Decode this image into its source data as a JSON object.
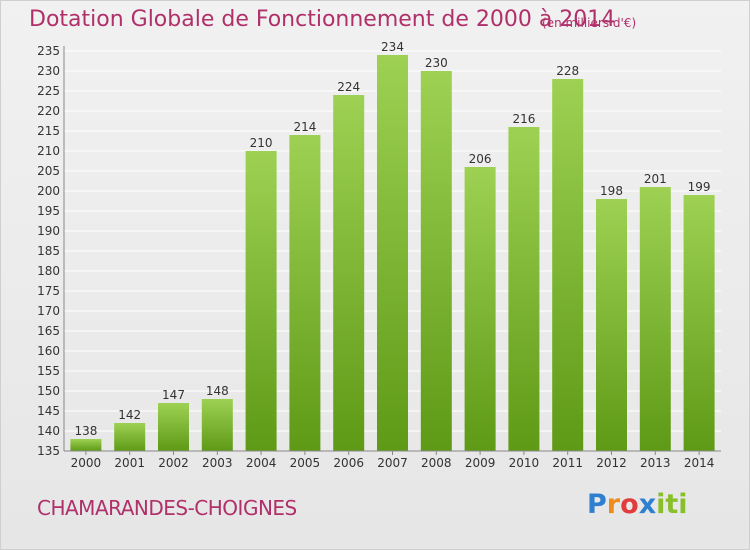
{
  "chart_data": {
    "type": "bar",
    "title": "Dotation Globale de Fonctionnement de 2000 à 2014",
    "subtitle": "(en milliers d'€)",
    "categories": [
      "2000",
      "2001",
      "2002",
      "2003",
      "2004",
      "2005",
      "2006",
      "2007",
      "2008",
      "2009",
      "2010",
      "2011",
      "2012",
      "2013",
      "2014"
    ],
    "values": [
      138,
      142,
      147,
      148,
      210,
      214,
      224,
      234,
      230,
      206,
      216,
      228,
      198,
      201,
      199
    ],
    "ylim": [
      135,
      235
    ],
    "yticks": [
      135,
      140,
      145,
      150,
      155,
      160,
      165,
      170,
      175,
      180,
      185,
      190,
      195,
      200,
      205,
      210,
      215,
      220,
      225,
      230,
      235
    ],
    "grid": true,
    "bar_color_top": "#9ed153",
    "bar_color_bottom": "#5e9a16"
  },
  "footer": {
    "commune": "CHAMARANDES-CHOIGNES",
    "brand": "Proxiti"
  },
  "colors": {
    "title": "#b0306a",
    "grid": "#ffffff",
    "axis_text": "#333333"
  }
}
